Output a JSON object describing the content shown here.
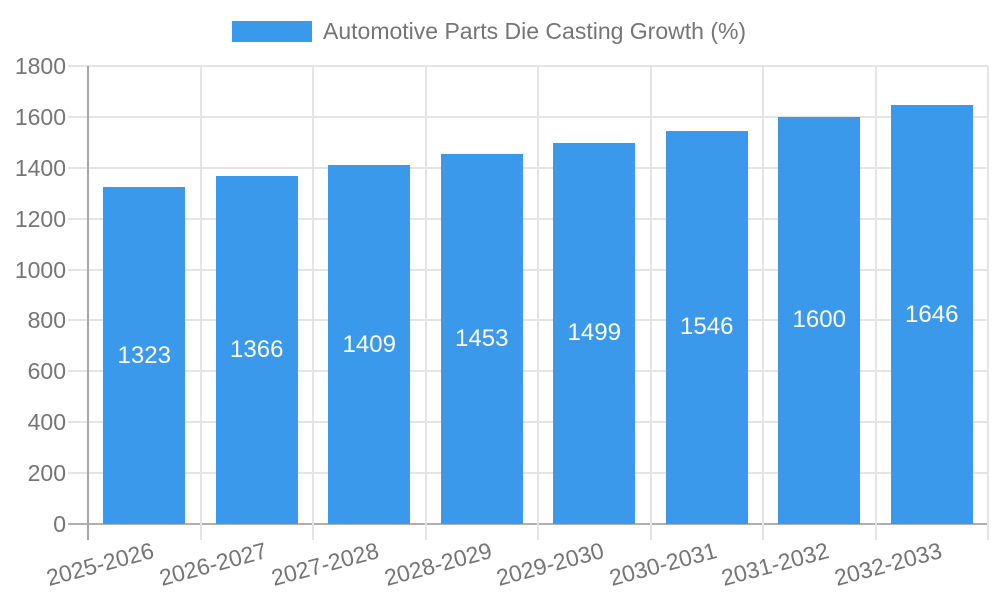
{
  "legend": {
    "label": "Automotive Parts Die Casting Growth (%)"
  },
  "chart_data": {
    "type": "bar",
    "title": "Automotive Parts Die Casting Growth (%)",
    "categories": [
      "2025-2026",
      "2026-2027",
      "2027-2028",
      "2028-2029",
      "2029-2030",
      "2030-2031",
      "2031-2032",
      "2032-2033"
    ],
    "series": [
      {
        "name": "Automotive Parts Die Casting Growth (%)",
        "values": [
          1323,
          1366,
          1409,
          1453,
          1499,
          1546,
          1600,
          1646
        ]
      }
    ],
    "value_labels_shown": true,
    "xlabel": "",
    "ylabel": "",
    "ylim": [
      0,
      1800
    ],
    "yticks": [
      0,
      200,
      400,
      600,
      800,
      1000,
      1200,
      1400,
      1600,
      1800
    ],
    "grid": true,
    "legend_position": "top-center",
    "x_label_rotation_deg": -15,
    "colors": {
      "bar": "#3b99ec",
      "bar_value_text": "#ffffff",
      "axis_text": "#757575",
      "gridline": "#e4e4e4",
      "baseline": "#b0b0b0",
      "axis_line": "#a6a6a6",
      "background": "#ffffff"
    }
  }
}
